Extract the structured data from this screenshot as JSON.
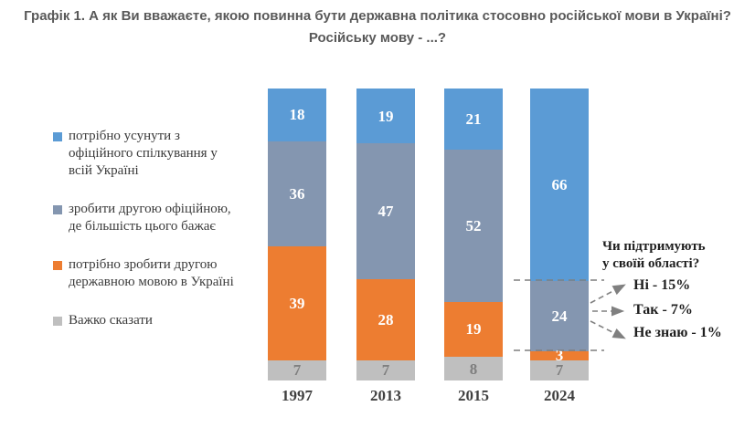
{
  "title": "Графік 1. А як Ви вважаєте, якою повинна бути державна політика стосовно російської мови в Україні? Російську мову - ...?",
  "legend": {
    "items": [
      {
        "label": "потрібно усунути з\nофіційного спілкування у\nвсій Україні",
        "color": "#5B9BD5"
      },
      {
        "label": "зробити другою офіційною,\nде більшість цього бажає",
        "color": "#8496B0"
      },
      {
        "label": "потрібно зробити другою\nдержавною мовою в Україні",
        "color": "#ED7D31"
      },
      {
        "label": "Важко сказати",
        "color": "#BFBFBF"
      }
    ]
  },
  "chart_data": {
    "type": "bar",
    "subtype": "stacked-percent-column",
    "stack_order": "listed top-to-bottom in each column",
    "categories": [
      "1997",
      "2013",
      "2015",
      "2024"
    ],
    "series": [
      {
        "name": "потрібно усунути з офіційного спілкування у всій Україні",
        "color": "#5B9BD5",
        "label_color": "#FFFFFF",
        "values": [
          18,
          19,
          21,
          66
        ]
      },
      {
        "name": "зробити другою офіційною, де більшість цього бажає",
        "color": "#8496B0",
        "label_color": "#FFFFFF",
        "values": [
          36,
          47,
          52,
          24
        ]
      },
      {
        "name": "потрібно зробити другою державною мовою в Україні",
        "color": "#ED7D31",
        "label_color": "#FFFFFF",
        "values": [
          39,
          28,
          19,
          3
        ]
      },
      {
        "name": "Важко сказати",
        "color": "#BFBFBF",
        "label_color": "#7F7F7F",
        "values": [
          7,
          7,
          8,
          7
        ]
      }
    ],
    "title": "Графік 1. А як Ви вважаєте, якою повинна бути державна політика стосовно російської мови в Україні? Російську мову - ...?",
    "xlabel": "",
    "ylabel": "",
    "unit": "%",
    "ylim": [
      0,
      100
    ],
    "grid": false,
    "legend_position": "left"
  },
  "annotation": {
    "header": "Чи підтримують\nу своїй області?",
    "items": [
      {
        "label": "Ні - 15%"
      },
      {
        "label": "Так - 7%"
      },
      {
        "label": "Не знаю - 1%"
      }
    ],
    "refers_to": "сегмент 24 (2024)"
  },
  "colors": {
    "title_text": "#595959",
    "axis_text": "#404040",
    "annotation_text": "#1F1F1F",
    "guide_and_arrow": "#808080",
    "background": "#FFFFFF"
  }
}
